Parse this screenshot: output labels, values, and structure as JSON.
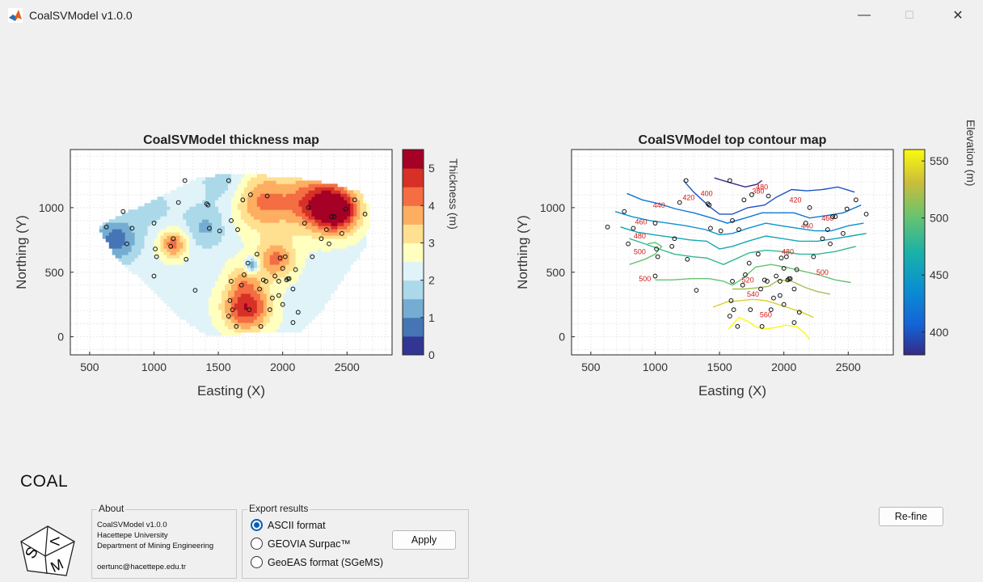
{
  "window": {
    "title": "CoalSVModel v1.0.0",
    "controls": {
      "minimize": "—",
      "maximize": "☐",
      "close": "✕"
    }
  },
  "left_plot": {
    "title": "CoalSVModel thickness map",
    "xlabel": "Easting (X)",
    "ylabel": "Northing (Y)",
    "colorbar_label": "Thickness (m)",
    "xticks": [
      "500",
      "1000",
      "1500",
      "2000",
      "2500"
    ],
    "yticks": [
      "0",
      "500",
      "1000"
    ],
    "cb_ticks": [
      "0",
      "1",
      "2",
      "3",
      "4",
      "5"
    ]
  },
  "right_plot": {
    "title": "CoalSVModel top contour map",
    "xlabel": "Easting (X)",
    "ylabel": "Northing (Y)",
    "colorbar_label": "Elevation (m)",
    "xticks": [
      "500",
      "1000",
      "1500",
      "2000",
      "2500"
    ],
    "yticks": [
      "0",
      "500",
      "1000"
    ],
    "cb_ticks": [
      "400",
      "450",
      "500",
      "550"
    ],
    "contour_labels": [
      "380",
      "400",
      "420",
      "440",
      "460",
      "480",
      "500",
      "520",
      "540",
      "560"
    ]
  },
  "chart_data": [
    {
      "type": "heatmap",
      "title": "CoalSVModel thickness map",
      "xlabel": "Easting (X)",
      "ylabel": "Northing (Y)",
      "xlim": [
        350,
        2850
      ],
      "ylim": [
        -140,
        1450
      ],
      "colorbar": {
        "label": "Thickness (m)",
        "range": [
          0,
          5.5
        ],
        "ticks": [
          0,
          1,
          2,
          3,
          4,
          5
        ],
        "levels": 11
      }
    },
    {
      "type": "line",
      "title": "CoalSVModel top contour map",
      "xlabel": "Easting (X)",
      "ylabel": "Northing (Y)",
      "xlim": [
        350,
        2850
      ],
      "ylim": [
        -140,
        1450
      ],
      "colorbar": {
        "label": "Elevation (m)",
        "range": [
          380,
          560
        ],
        "ticks": [
          400,
          450,
          500,
          550
        ]
      },
      "contour_levels": [
        380,
        400,
        420,
        440,
        460,
        480,
        500,
        520,
        540,
        560
      ]
    }
  ],
  "logo": {
    "text": "COAL",
    "letters": [
      "S",
      "V",
      "M"
    ]
  },
  "about": {
    "title": "About",
    "lines": [
      "CoalSVModel v1.0.0",
      "Hacettepe University",
      "Department of Mining Engineering",
      "oertunc@hacettepe.edu.tr"
    ]
  },
  "export": {
    "title": "Export results",
    "options": [
      "ASCII format",
      "GEOVIA Surpac™",
      "GeoEAS format (SGeMS)"
    ],
    "selected": 0,
    "apply_label": "Apply"
  },
  "refine_label": "Re-fine"
}
